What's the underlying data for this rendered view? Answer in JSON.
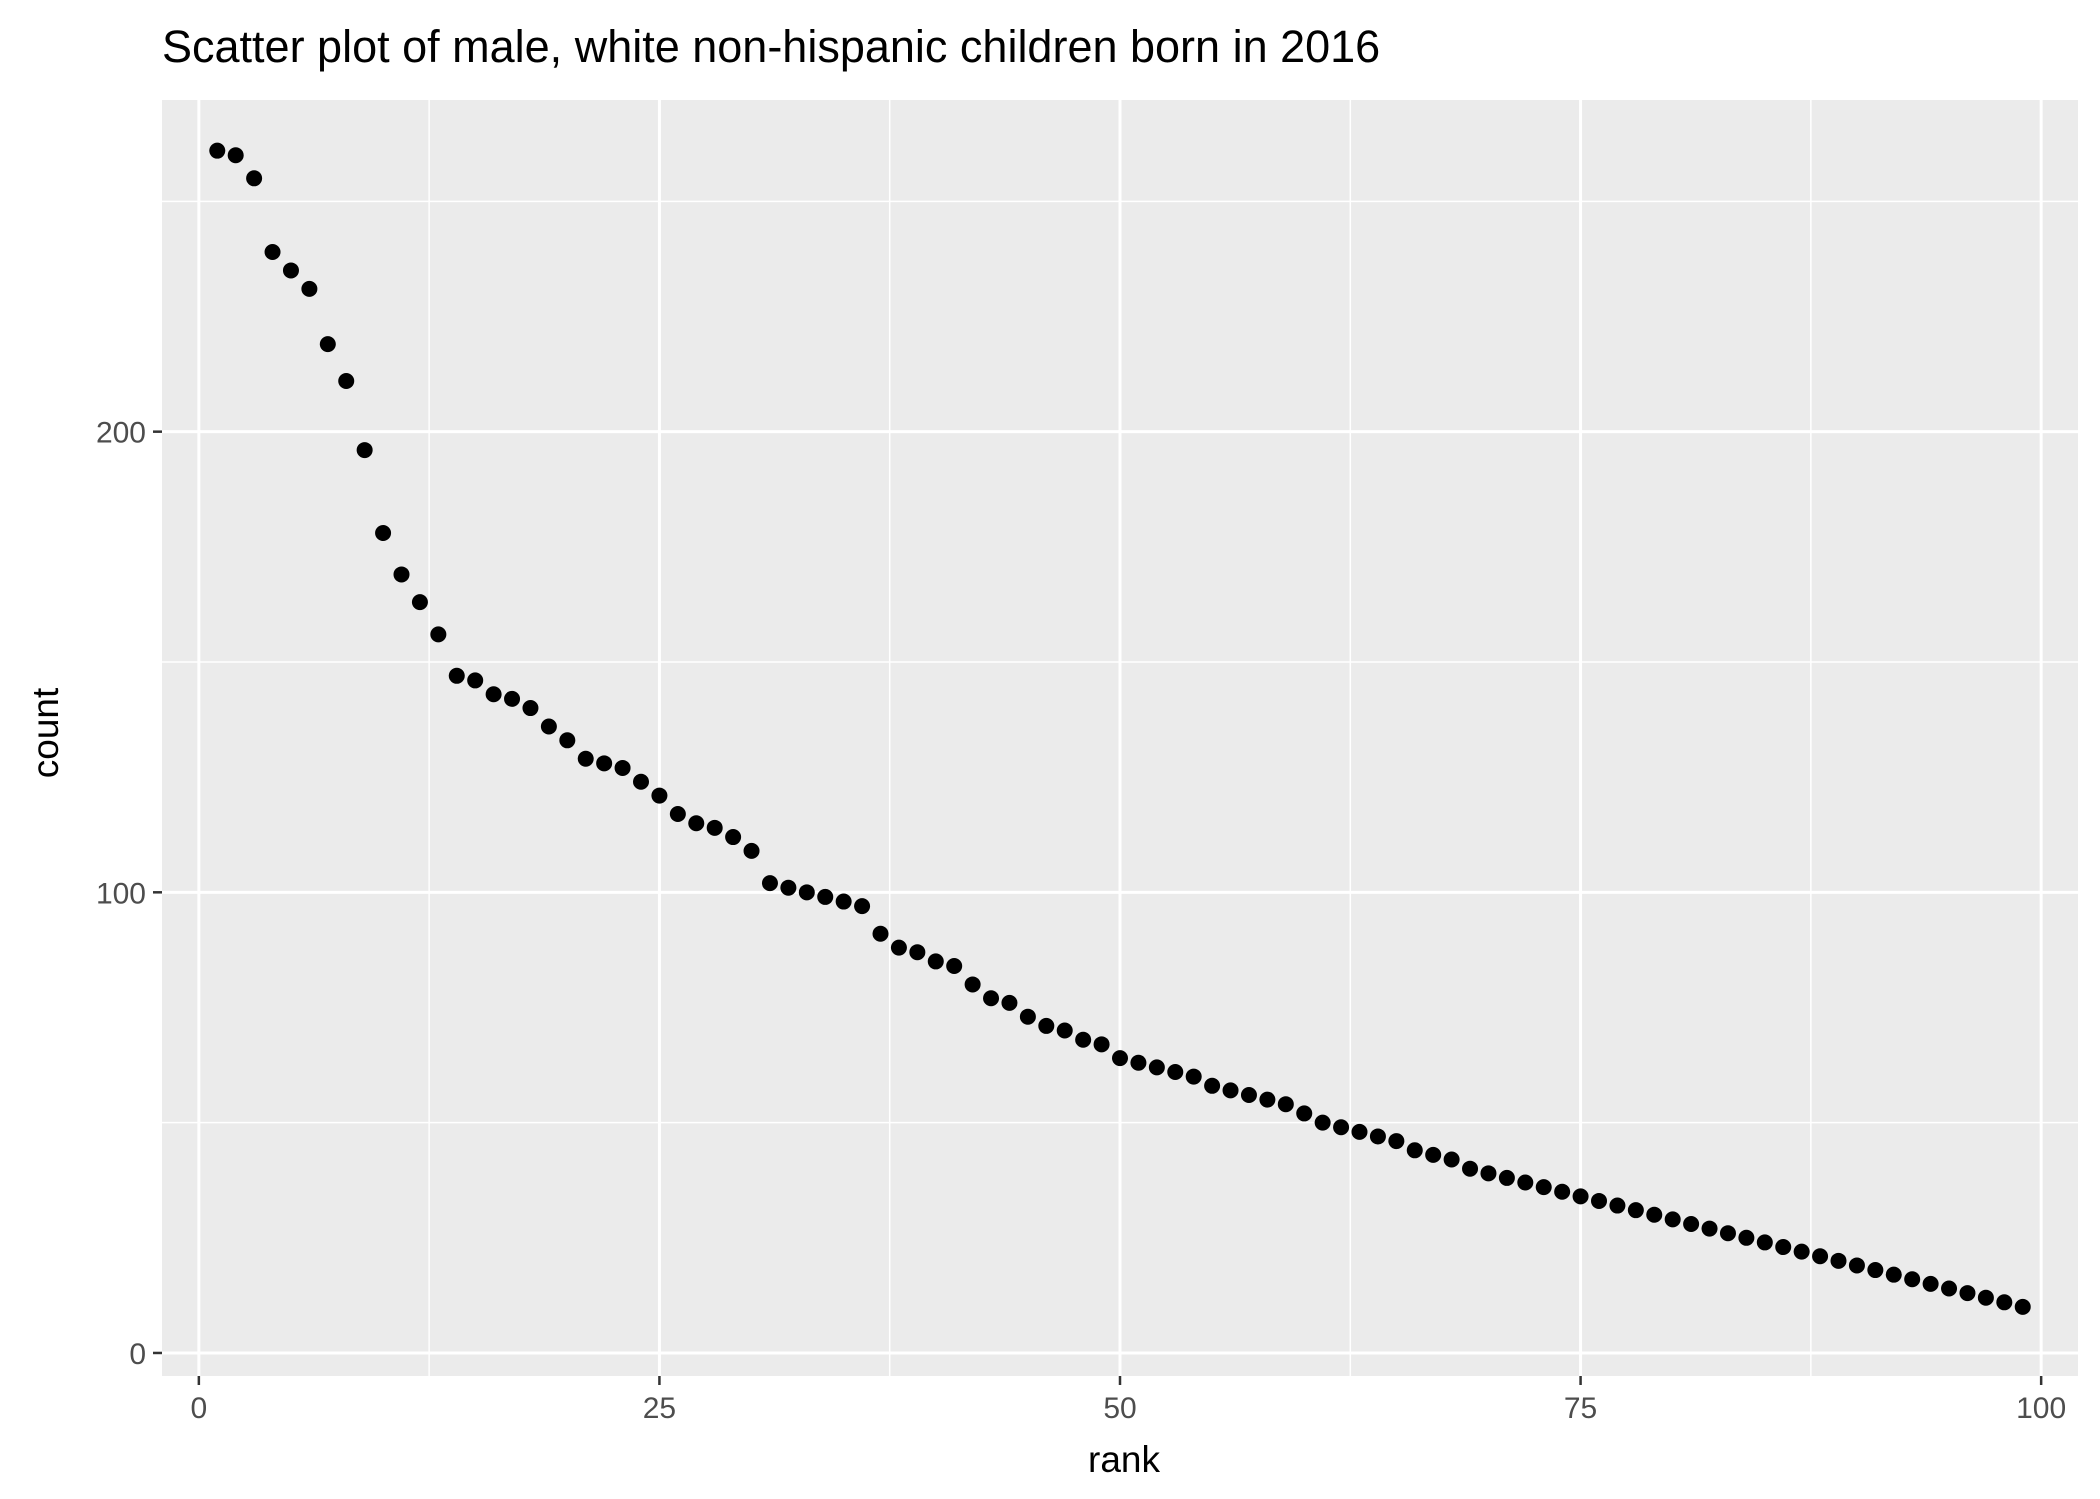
{
  "chart_data": {
    "type": "scatter",
    "title": "Scatter plot of male, white non-hispanic children born in 2016",
    "xlabel": "rank",
    "ylabel": "count",
    "xlim": [
      -2,
      102
    ],
    "ylim": [
      -5,
      272
    ],
    "xticks": [
      0,
      25,
      50,
      75,
      100
    ],
    "yticks": [
      0,
      100,
      200
    ],
    "grid": true,
    "legend": "none",
    "point_color": "#000000",
    "panel_background": "#ebebeb",
    "x": [
      1,
      2,
      3,
      4,
      5,
      6,
      7,
      8,
      9,
      10,
      11,
      12,
      13,
      14,
      15,
      16,
      17,
      18,
      19,
      20,
      21,
      22,
      23,
      24,
      25,
      26,
      27,
      28,
      29,
      30,
      31,
      32,
      33,
      34,
      35,
      36,
      37,
      38,
      39,
      40,
      41,
      42,
      43,
      44,
      45,
      46,
      47,
      48,
      49,
      50,
      51,
      52,
      53,
      54,
      55,
      56,
      57,
      58,
      59,
      60,
      61,
      62,
      63,
      64,
      65,
      66,
      67,
      68,
      69,
      70,
      71,
      72,
      73,
      74,
      75,
      76,
      77,
      78,
      79,
      80,
      81,
      82,
      83,
      84,
      85,
      86,
      87,
      88,
      89,
      90,
      91,
      92,
      93,
      94,
      95,
      96,
      97,
      98,
      99
    ],
    "y": [
      261,
      260,
      255,
      239,
      235,
      231,
      219,
      211,
      196,
      178,
      169,
      163,
      156,
      147,
      146,
      143,
      142,
      140,
      136,
      133,
      129,
      128,
      127,
      124,
      121,
      117,
      115,
      114,
      112,
      109,
      102,
      101,
      100,
      99,
      98,
      97,
      91,
      88,
      87,
      85,
      84,
      80,
      77,
      76,
      73,
      71,
      70,
      68,
      67,
      64,
      63,
      62,
      61,
      60,
      58,
      57,
      56,
      55,
      54,
      52,
      50,
      49,
      48,
      47,
      46,
      44,
      43,
      42,
      40,
      39,
      38,
      37,
      36,
      35,
      34,
      33,
      32,
      31,
      30,
      29,
      28,
      27,
      26,
      25,
      24,
      23,
      22,
      21,
      20,
      19,
      18,
      17,
      16,
      15,
      14,
      13,
      12,
      11,
      10
    ]
  }
}
